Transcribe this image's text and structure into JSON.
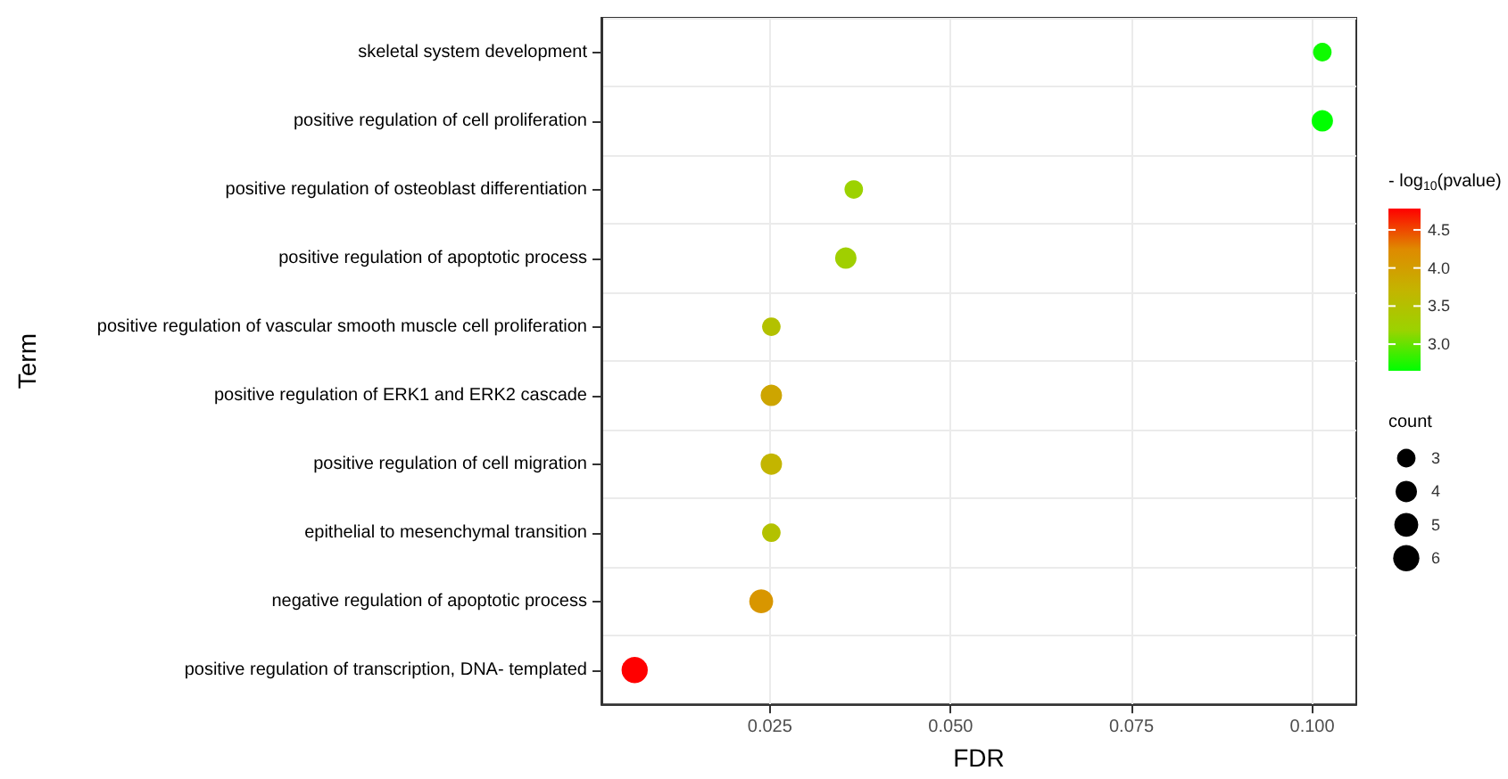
{
  "chart_data": {
    "type": "bubble",
    "xlabel": "FDR",
    "ylabel": "Term",
    "categories": [
      "skeletal system development",
      "positive regulation of cell proliferation",
      "positive regulation of osteoblast differentiation",
      "positive regulation of apoptotic process",
      "positive regulation of vascular smooth muscle cell proliferation",
      "positive regulation of ERK1 and ERK2 cascade",
      "positive regulation of cell migration",
      "epithelial to mesenchymal transition",
      "negative regulation of apoptotic process",
      "positive regulation of transcription, DNA- templated"
    ],
    "orientation": "horizontal",
    "values": [
      0.1014,
      0.1014,
      0.0366,
      0.0355,
      0.0252,
      0.0252,
      0.0252,
      0.0252,
      0.0238,
      0.0063
    ],
    "sizes": [
      3,
      4,
      3,
      4,
      3,
      4,
      4,
      3,
      5,
      6
    ],
    "cvalues": [
      2.7,
      2.65,
      3.2,
      3.25,
      3.5,
      3.9,
      3.7,
      3.5,
      4.1,
      4.78
    ],
    "clabel": "- log$_{10}$(pvalue)",
    "clim": [
      2.65,
      4.78
    ],
    "cticks": [
      {
        "value": 3,
        "label": "3.0"
      },
      3.5,
      {
        "value": 4,
        "label": "4.0"
      },
      4.5
    ],
    "legend_title": "count",
    "size_legend": [
      3,
      4,
      5,
      6
    ],
    "xlim": [
      0.0017,
      0.1061
    ],
    "xticks": [
      0.025,
      {
        "value": 0.05,
        "label": "0.050"
      },
      0.075,
      {
        "value": 0.1,
        "label": "0.100"
      }
    ],
    "grid": true,
    "marker": "circle"
  }
}
